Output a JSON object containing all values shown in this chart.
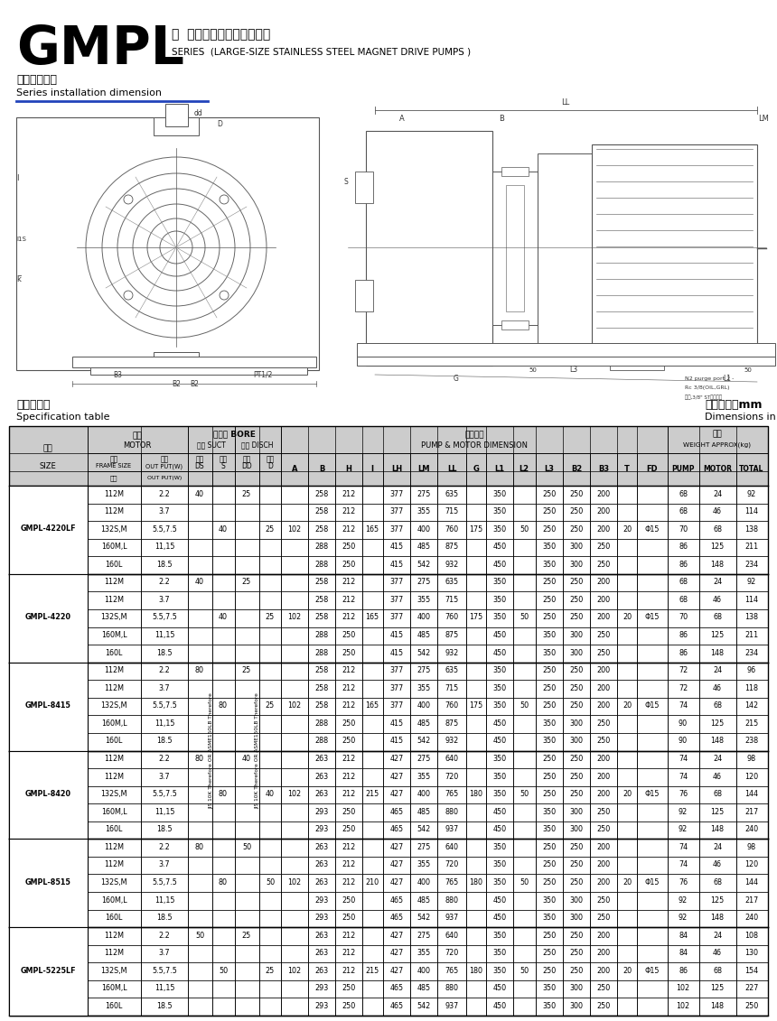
{
  "title_large": "GMPL",
  "title_zh": "系  列（大型金属磁力泵浦）",
  "title_en": "SERIES  (LARGE-SIZE STAINLESS STEEL MAGNET DRIVE PUMPS )",
  "subtitle_zh": "系列安装尺寸",
  "subtitle_en": "Series installation dimension",
  "spec_zh": "技术参数表",
  "spec_en": "Specification table",
  "dim_zh": "外形尺寸：mm",
  "dim_en": "Dimensions in mm",
  "group_names": [
    "GMPL-4220LF",
    "GMPL-4220",
    "GMPL-8415",
    "GMPL-8420",
    "GMPL-8515",
    "GMPL-5225LF"
  ],
  "group_sizes": [
    5,
    5,
    5,
    5,
    5,
    5
  ],
  "data_rows": [
    [
      "112M",
      "2.2",
      "40",
      "",
      "25",
      "",
      "",
      "258",
      "212",
      "",
      "377",
      "275",
      "635",
      "",
      "350",
      "",
      "250",
      "250",
      "200",
      "",
      "",
      "68",
      "24",
      "92"
    ],
    [
      "112M",
      "3.7",
      "",
      "",
      "",
      "",
      "",
      "258",
      "212",
      "",
      "377",
      "355",
      "715",
      "",
      "350",
      "",
      "250",
      "250",
      "200",
      "",
      "",
      "68",
      "46",
      "114"
    ],
    [
      "132S,M",
      "5.5,7.5",
      "",
      "40",
      "",
      "25",
      "102",
      "258",
      "212",
      "165",
      "377",
      "400",
      "760",
      "175",
      "350",
      "50",
      "250",
      "250",
      "200",
      "20",
      "Φ15",
      "70",
      "68",
      "138"
    ],
    [
      "160M,L",
      "11,15",
      "",
      "",
      "",
      "",
      "",
      "288",
      "250",
      "",
      "415",
      "485",
      "875",
      "",
      "450",
      "",
      "350",
      "300",
      "250",
      "",
      "",
      "86",
      "125",
      "211"
    ],
    [
      "160L",
      "18.5",
      "",
      "",
      "",
      "",
      "",
      "288",
      "250",
      "",
      "415",
      "542",
      "932",
      "",
      "450",
      "",
      "350",
      "300",
      "250",
      "",
      "",
      "86",
      "148",
      "234"
    ],
    [
      "112M",
      "2.2",
      "40",
      "",
      "25",
      "",
      "",
      "258",
      "212",
      "",
      "377",
      "275",
      "635",
      "",
      "350",
      "",
      "250",
      "250",
      "200",
      "",
      "",
      "68",
      "24",
      "92"
    ],
    [
      "112M",
      "3.7",
      "",
      "",
      "",
      "",
      "",
      "258",
      "212",
      "",
      "377",
      "355",
      "715",
      "",
      "350",
      "",
      "250",
      "250",
      "200",
      "",
      "",
      "68",
      "46",
      "114"
    ],
    [
      "132S,M",
      "5.5,7.5",
      "",
      "40",
      "",
      "25",
      "102",
      "258",
      "212",
      "165",
      "377",
      "400",
      "760",
      "175",
      "350",
      "50",
      "250",
      "250",
      "200",
      "20",
      "Φ15",
      "70",
      "68",
      "138"
    ],
    [
      "160M,L",
      "11,15",
      "",
      "",
      "",
      "",
      "",
      "288",
      "250",
      "",
      "415",
      "485",
      "875",
      "",
      "450",
      "",
      "350",
      "300",
      "250",
      "",
      "",
      "86",
      "125",
      "211"
    ],
    [
      "160L",
      "18.5",
      "",
      "",
      "",
      "",
      "",
      "288",
      "250",
      "",
      "415",
      "542",
      "932",
      "",
      "450",
      "",
      "350",
      "300",
      "250",
      "",
      "",
      "86",
      "148",
      "234"
    ],
    [
      "112M",
      "2.2",
      "80",
      "",
      "25",
      "",
      "",
      "258",
      "212",
      "",
      "377",
      "275",
      "635",
      "",
      "350",
      "",
      "250",
      "250",
      "200",
      "",
      "",
      "72",
      "24",
      "96"
    ],
    [
      "112M",
      "3.7",
      "",
      "",
      "",
      "",
      "",
      "258",
      "212",
      "",
      "377",
      "355",
      "715",
      "",
      "350",
      "",
      "250",
      "250",
      "200",
      "",
      "",
      "72",
      "46",
      "118"
    ],
    [
      "132S,M",
      "5.5,7.5",
      "",
      "80",
      "",
      "25",
      "102",
      "258",
      "212",
      "165",
      "377",
      "400",
      "760",
      "175",
      "350",
      "50",
      "250",
      "250",
      "200",
      "20",
      "Φ15",
      "74",
      "68",
      "142"
    ],
    [
      "160M,L",
      "11,15",
      "",
      "",
      "",
      "",
      "",
      "288",
      "250",
      "",
      "415",
      "485",
      "875",
      "",
      "450",
      "",
      "350",
      "300",
      "250",
      "",
      "",
      "90",
      "125",
      "215"
    ],
    [
      "160L",
      "18.5",
      "",
      "",
      "",
      "",
      "",
      "288",
      "250",
      "",
      "415",
      "542",
      "932",
      "",
      "450",
      "",
      "350",
      "300",
      "250",
      "",
      "",
      "90",
      "148",
      "238"
    ],
    [
      "112M",
      "2.2",
      "80",
      "",
      "40",
      "",
      "",
      "263",
      "212",
      "",
      "427",
      "275",
      "640",
      "",
      "350",
      "",
      "250",
      "250",
      "200",
      "",
      "",
      "74",
      "24",
      "98"
    ],
    [
      "112M",
      "3.7",
      "",
      "",
      "",
      "",
      "",
      "263",
      "212",
      "",
      "427",
      "355",
      "720",
      "",
      "350",
      "",
      "250",
      "250",
      "200",
      "",
      "",
      "74",
      "46",
      "120"
    ],
    [
      "132S,M",
      "5.5,7.5",
      "",
      "80",
      "",
      "40",
      "102",
      "263",
      "212",
      "215",
      "427",
      "400",
      "765",
      "180",
      "350",
      "50",
      "250",
      "250",
      "200",
      "20",
      "Φ15",
      "76",
      "68",
      "144"
    ],
    [
      "160M,L",
      "11,15",
      "",
      "",
      "",
      "",
      "",
      "293",
      "250",
      "",
      "465",
      "485",
      "880",
      "",
      "450",
      "",
      "350",
      "300",
      "250",
      "",
      "",
      "92",
      "125",
      "217"
    ],
    [
      "160L",
      "18.5",
      "",
      "",
      "",
      "",
      "",
      "293",
      "250",
      "",
      "465",
      "542",
      "937",
      "",
      "450",
      "",
      "350",
      "300",
      "250",
      "",
      "",
      "92",
      "148",
      "240"
    ],
    [
      "112M",
      "2.2",
      "80",
      "",
      "50",
      "",
      "",
      "263",
      "212",
      "",
      "427",
      "275",
      "640",
      "",
      "350",
      "",
      "250",
      "250",
      "200",
      "",
      "",
      "74",
      "24",
      "98"
    ],
    [
      "112M",
      "3.7",
      "",
      "",
      "",
      "",
      "",
      "263",
      "212",
      "",
      "427",
      "355",
      "720",
      "",
      "350",
      "",
      "250",
      "250",
      "200",
      "",
      "",
      "74",
      "46",
      "120"
    ],
    [
      "132S,M",
      "5.5,7.5",
      "",
      "80",
      "",
      "50",
      "102",
      "263",
      "212",
      "210",
      "427",
      "400",
      "765",
      "180",
      "350",
      "50",
      "250",
      "250",
      "200",
      "20",
      "Φ15",
      "76",
      "68",
      "144"
    ],
    [
      "160M,L",
      "11,15",
      "",
      "",
      "",
      "",
      "",
      "293",
      "250",
      "",
      "465",
      "485",
      "880",
      "",
      "450",
      "",
      "350",
      "300",
      "250",
      "",
      "",
      "92",
      "125",
      "217"
    ],
    [
      "160L",
      "18.5",
      "",
      "",
      "",
      "",
      "",
      "293",
      "250",
      "",
      "465",
      "542",
      "937",
      "",
      "450",
      "",
      "350",
      "300",
      "250",
      "",
      "",
      "92",
      "148",
      "240"
    ],
    [
      "112M",
      "2.2",
      "50",
      "",
      "25",
      "",
      "",
      "263",
      "212",
      "",
      "427",
      "275",
      "640",
      "",
      "350",
      "",
      "250",
      "250",
      "200",
      "",
      "",
      "84",
      "24",
      "108"
    ],
    [
      "112M",
      "3.7",
      "",
      "",
      "",
      "",
      "",
      "263",
      "212",
      "",
      "427",
      "355",
      "720",
      "",
      "350",
      "",
      "250",
      "250",
      "200",
      "",
      "",
      "84",
      "46",
      "130"
    ],
    [
      "132S,M",
      "5.5,7.5",
      "",
      "50",
      "",
      "25",
      "102",
      "263",
      "212",
      "215",
      "427",
      "400",
      "765",
      "180",
      "350",
      "50",
      "250",
      "250",
      "200",
      "20",
      "Φ15",
      "86",
      "68",
      "154"
    ],
    [
      "160M,L",
      "11,15",
      "",
      "",
      "",
      "",
      "",
      "293",
      "250",
      "",
      "465",
      "485",
      "880",
      "",
      "450",
      "",
      "350",
      "300",
      "250",
      "",
      "",
      "102",
      "125",
      "227"
    ],
    [
      "160L",
      "18.5",
      "",
      "",
      "",
      "",
      "",
      "293",
      "250",
      "",
      "465",
      "542",
      "937",
      "",
      "450",
      "",
      "350",
      "300",
      "250",
      "",
      "",
      "102",
      "148",
      "250"
    ]
  ],
  "col_labels": [
    "A",
    "B",
    "H",
    "I",
    "LH",
    "LM",
    "LL",
    "G",
    "L1",
    "L2",
    "L3",
    "B2",
    "B3",
    "T",
    "FD"
  ],
  "wt_labels": [
    "PUMP",
    "MOTOR",
    "TOTAL"
  ],
  "bore_labels": [
    "口径\nDS",
    "法兰\nS",
    "口径\nDD",
    "法兰\nD"
  ],
  "jis_text": "JIS 10K Therefore OR ASME150LB Therefore"
}
